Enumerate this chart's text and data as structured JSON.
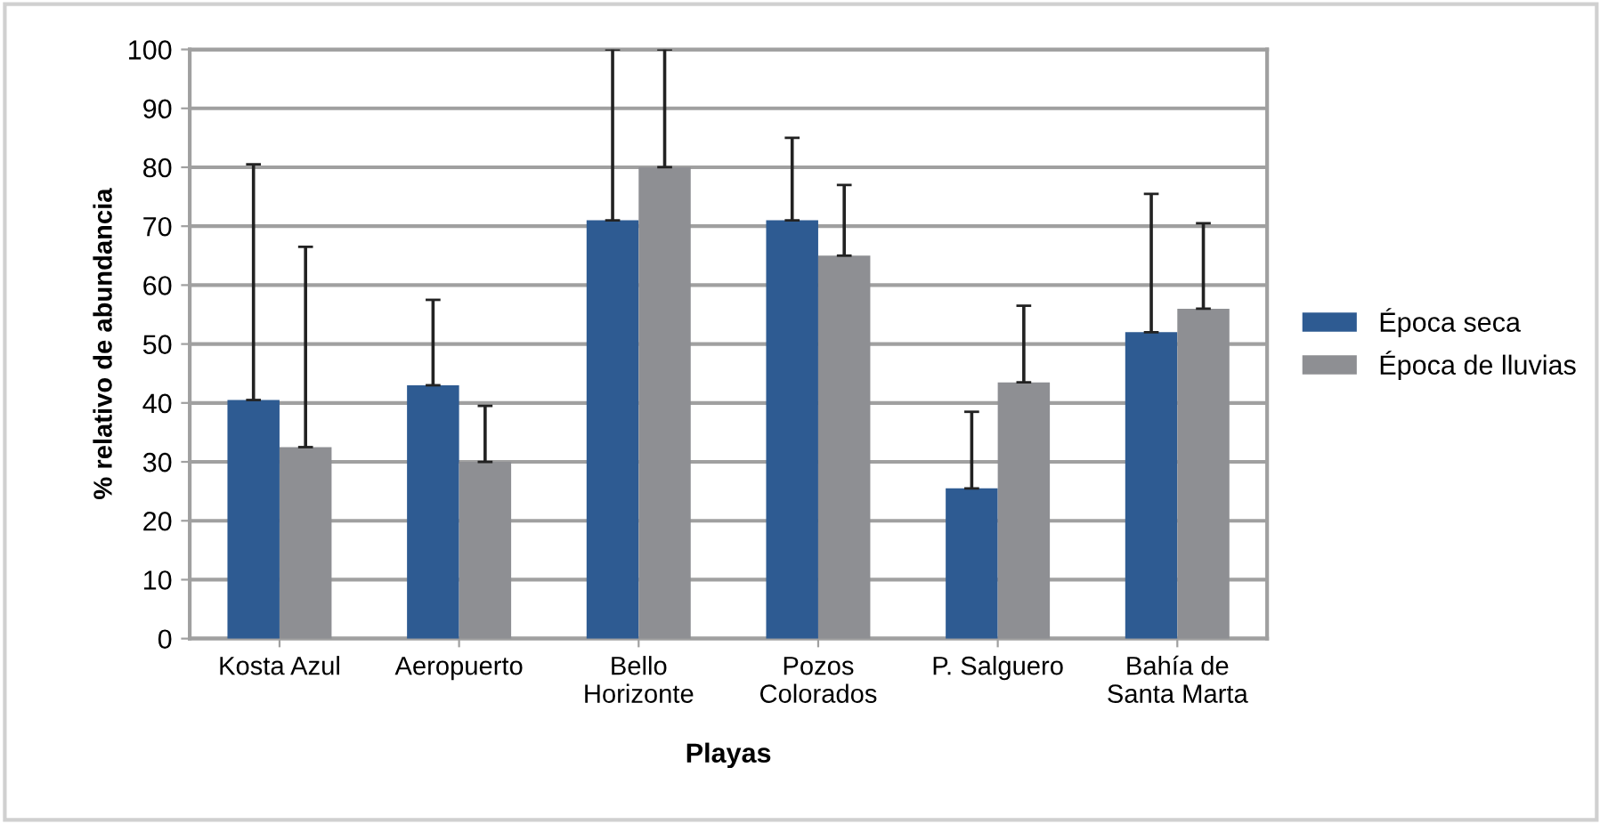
{
  "chart_data": {
    "type": "bar",
    "xlabel": "Playas",
    "ylabel": "% relativo de abundancia",
    "categories": [
      "Kosta Azul",
      "Aeropuerto",
      "Bello\nHorizonte",
      "Pozos\nColorados",
      "P. Salguero",
      "Bahía de\nSanta Marta"
    ],
    "series": [
      {
        "name": "Época seca",
        "color": "#2e5b92",
        "values": [
          40.5,
          43,
          71,
          71,
          25.5,
          52
        ],
        "errors": [
          [
            40.5,
            80.5
          ],
          [
            43,
            57.5
          ],
          [
            71,
            100
          ],
          [
            71,
            85
          ],
          [
            25.5,
            38.5
          ],
          [
            52,
            75.5
          ]
        ]
      },
      {
        "name": "Época de lluvias",
        "color": "#8e8f93",
        "values": [
          32.5,
          30,
          80,
          65,
          43.5,
          56
        ],
        "errors": [
          [
            32.5,
            66.5
          ],
          [
            30,
            39.5
          ],
          [
            80,
            100
          ],
          [
            65,
            77
          ],
          [
            43.5,
            56.5
          ],
          [
            56,
            70.5
          ]
        ]
      }
    ],
    "ylim": [
      0,
      100
    ],
    "yticks": [
      0,
      10,
      20,
      30,
      40,
      50,
      60,
      70,
      80,
      90,
      100
    ],
    "grid": "y",
    "legend": "right"
  }
}
